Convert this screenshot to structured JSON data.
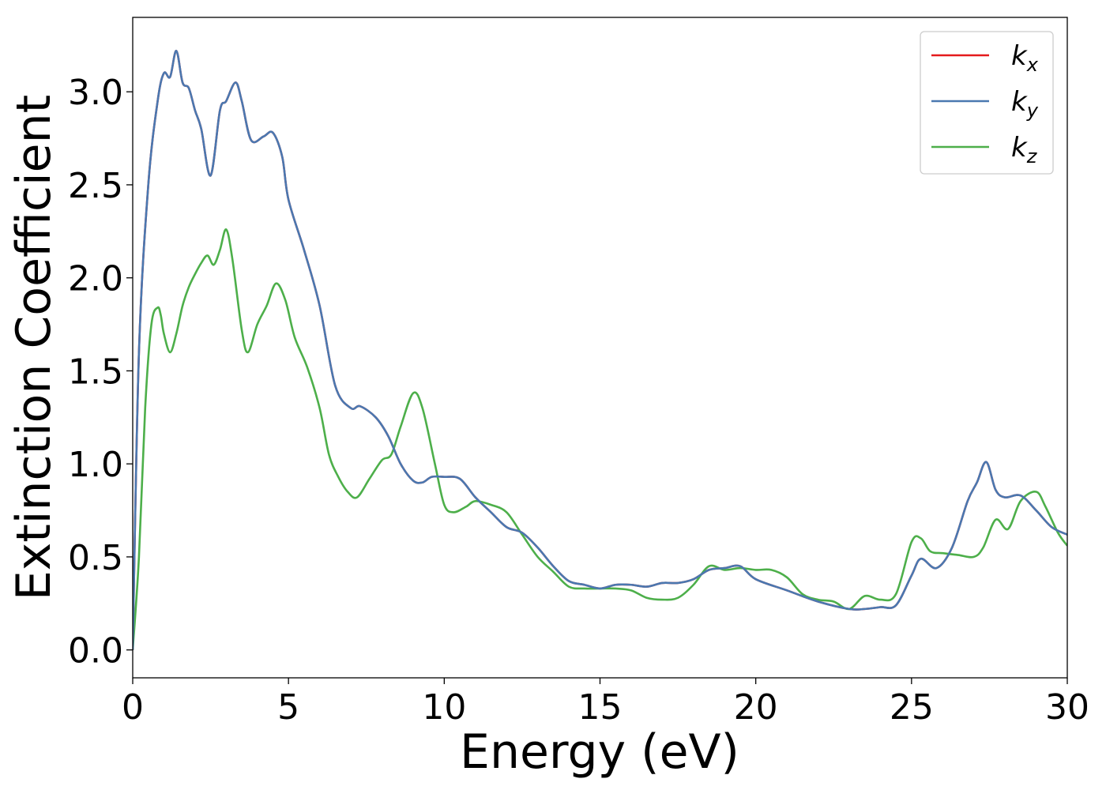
{
  "chart_data": {
    "type": "line",
    "xlabel": "Energy (eV)",
    "ylabel": "Extinction Coefficient",
    "xlim": [
      0,
      30
    ],
    "ylim": [
      -0.15,
      3.4
    ],
    "xticks": [
      0,
      5,
      10,
      15,
      20,
      25,
      30
    ],
    "xtick_labels": [
      "0",
      "5",
      "10",
      "15",
      "20",
      "25",
      "30"
    ],
    "yticks": [
      0.0,
      0.5,
      1.0,
      1.5,
      2.0,
      2.5,
      3.0
    ],
    "ytick_labels": [
      "0.0",
      "0.5",
      "1.0",
      "1.5",
      "2.0",
      "2.5",
      "3.0"
    ],
    "grid": false,
    "legend_position": "top-right",
    "series": [
      {
        "name": "k_x",
        "base": "k",
        "sub": "x",
        "color": "#e41a1c",
        "x": [
          0,
          0.2,
          0.5,
          0.8,
          1.0,
          1.2,
          1.4,
          1.6,
          1.8,
          2.0,
          2.2,
          2.5,
          2.8,
          3.0,
          3.3,
          3.5,
          3.8,
          4.2,
          4.5,
          4.8,
          5.0,
          5.5,
          6.0,
          6.5,
          7.0,
          7.3,
          7.8,
          8.2,
          8.6,
          9.0,
          9.3,
          9.6,
          10.0,
          10.5,
          11.0,
          11.5,
          12.0,
          12.5,
          13.0,
          13.5,
          14.0,
          14.5,
          15.0,
          15.5,
          16.0,
          16.5,
          17.0,
          17.5,
          18.0,
          18.5,
          19.0,
          19.5,
          20.0,
          21.0,
          22.0,
          23.0,
          23.5,
          24.0,
          24.5,
          25.0,
          25.3,
          25.8,
          26.3,
          26.8,
          27.1,
          27.4,
          27.7,
          28.0,
          28.5,
          29.0,
          29.5,
          30.0
        ],
        "y": [
          0.0,
          1.6,
          2.5,
          2.95,
          3.1,
          3.08,
          3.22,
          3.05,
          3.02,
          2.9,
          2.8,
          2.55,
          2.9,
          2.95,
          3.05,
          2.95,
          2.74,
          2.76,
          2.78,
          2.65,
          2.42,
          2.15,
          1.85,
          1.42,
          1.3,
          1.31,
          1.25,
          1.15,
          1.0,
          0.91,
          0.9,
          0.93,
          0.93,
          0.92,
          0.82,
          0.74,
          0.66,
          0.63,
          0.55,
          0.45,
          0.37,
          0.35,
          0.33,
          0.35,
          0.35,
          0.34,
          0.36,
          0.36,
          0.38,
          0.43,
          0.44,
          0.45,
          0.38,
          0.32,
          0.26,
          0.22,
          0.22,
          0.23,
          0.24,
          0.4,
          0.49,
          0.44,
          0.55,
          0.8,
          0.9,
          1.01,
          0.86,
          0.82,
          0.83,
          0.75,
          0.66,
          0.62
        ]
      },
      {
        "name": "k_y",
        "base": "k",
        "sub": "y",
        "color": "#4a78b0",
        "x": [
          0,
          0.2,
          0.5,
          0.8,
          1.0,
          1.2,
          1.4,
          1.6,
          1.8,
          2.0,
          2.2,
          2.5,
          2.8,
          3.0,
          3.3,
          3.5,
          3.8,
          4.2,
          4.5,
          4.8,
          5.0,
          5.5,
          6.0,
          6.5,
          7.0,
          7.3,
          7.8,
          8.2,
          8.6,
          9.0,
          9.3,
          9.6,
          10.0,
          10.5,
          11.0,
          11.5,
          12.0,
          12.5,
          13.0,
          13.5,
          14.0,
          14.5,
          15.0,
          15.5,
          16.0,
          16.5,
          17.0,
          17.5,
          18.0,
          18.5,
          19.0,
          19.5,
          20.0,
          21.0,
          22.0,
          23.0,
          23.5,
          24.0,
          24.5,
          25.0,
          25.3,
          25.8,
          26.3,
          26.8,
          27.1,
          27.4,
          27.7,
          28.0,
          28.5,
          29.0,
          29.5,
          30.0
        ],
        "y": [
          0.0,
          1.6,
          2.5,
          2.95,
          3.1,
          3.08,
          3.22,
          3.05,
          3.02,
          2.9,
          2.8,
          2.55,
          2.9,
          2.95,
          3.05,
          2.95,
          2.74,
          2.76,
          2.78,
          2.65,
          2.42,
          2.15,
          1.85,
          1.42,
          1.3,
          1.31,
          1.25,
          1.15,
          1.0,
          0.91,
          0.9,
          0.93,
          0.93,
          0.92,
          0.82,
          0.74,
          0.66,
          0.63,
          0.55,
          0.45,
          0.37,
          0.35,
          0.33,
          0.35,
          0.35,
          0.34,
          0.36,
          0.36,
          0.38,
          0.43,
          0.44,
          0.45,
          0.38,
          0.32,
          0.26,
          0.22,
          0.22,
          0.23,
          0.24,
          0.4,
          0.49,
          0.44,
          0.55,
          0.8,
          0.9,
          1.01,
          0.86,
          0.82,
          0.83,
          0.75,
          0.66,
          0.62
        ]
      },
      {
        "name": "k_z",
        "base": "k",
        "sub": "z",
        "color": "#4daf4a",
        "x": [
          0,
          0.2,
          0.4,
          0.6,
          0.8,
          0.9,
          1.0,
          1.2,
          1.4,
          1.6,
          1.8,
          2.0,
          2.2,
          2.4,
          2.6,
          2.8,
          3.0,
          3.2,
          3.5,
          3.7,
          4.0,
          4.3,
          4.6,
          4.9,
          5.2,
          5.6,
          6.0,
          6.3,
          6.6,
          6.9,
          7.2,
          7.6,
          8.0,
          8.3,
          8.6,
          9.0,
          9.3,
          9.7,
          10.0,
          10.3,
          10.7,
          11.0,
          11.5,
          12.0,
          12.5,
          13.0,
          13.5,
          14.0,
          14.5,
          15.0,
          15.5,
          16.0,
          16.5,
          17.0,
          17.5,
          18.0,
          18.5,
          19.0,
          19.5,
          20.0,
          20.5,
          21.0,
          21.5,
          22.0,
          22.5,
          23.0,
          23.5,
          24.0,
          24.5,
          25.0,
          25.3,
          25.6,
          26.0,
          26.5,
          27.0,
          27.3,
          27.7,
          28.1,
          28.5,
          29.0,
          29.3,
          29.7,
          30.0
        ],
        "y": [
          0.0,
          0.5,
          1.3,
          1.75,
          1.84,
          1.8,
          1.7,
          1.6,
          1.7,
          1.85,
          1.95,
          2.02,
          2.08,
          2.12,
          2.07,
          2.15,
          2.26,
          2.1,
          1.72,
          1.6,
          1.75,
          1.85,
          1.97,
          1.88,
          1.68,
          1.52,
          1.3,
          1.05,
          0.93,
          0.85,
          0.82,
          0.92,
          1.02,
          1.05,
          1.2,
          1.38,
          1.3,
          1.0,
          0.78,
          0.74,
          0.77,
          0.8,
          0.78,
          0.74,
          0.62,
          0.5,
          0.42,
          0.34,
          0.33,
          0.33,
          0.33,
          0.32,
          0.28,
          0.27,
          0.28,
          0.35,
          0.45,
          0.43,
          0.44,
          0.43,
          0.43,
          0.39,
          0.3,
          0.27,
          0.26,
          0.22,
          0.29,
          0.27,
          0.3,
          0.58,
          0.6,
          0.53,
          0.52,
          0.51,
          0.5,
          0.55,
          0.7,
          0.65,
          0.8,
          0.85,
          0.77,
          0.63,
          0.56
        ]
      }
    ]
  }
}
